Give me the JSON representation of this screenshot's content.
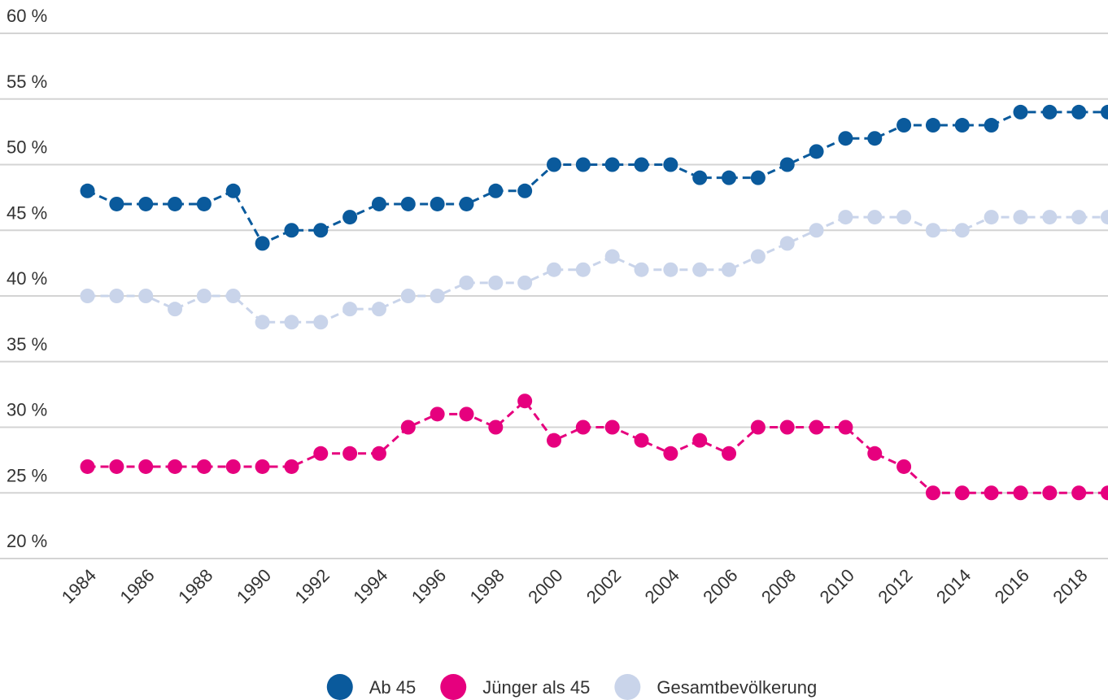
{
  "chart_data": {
    "type": "line",
    "x": [
      1984,
      1985,
      1986,
      1987,
      1988,
      1989,
      1990,
      1991,
      1992,
      1993,
      1994,
      1995,
      1996,
      1997,
      1998,
      1999,
      2000,
      2001,
      2002,
      2003,
      2004,
      2005,
      2006,
      2007,
      2008,
      2009,
      2010,
      2011,
      2012,
      2013,
      2014,
      2015,
      2016,
      2017,
      2018,
      2019
    ],
    "series": [
      {
        "name": "Ab 45",
        "color": "#0a5a9c",
        "values": [
          48,
          47,
          47,
          47,
          47,
          48,
          44,
          45,
          45,
          46,
          47,
          47,
          47,
          47,
          48,
          48,
          50,
          50,
          50,
          50,
          50,
          49,
          49,
          49,
          50,
          51,
          52,
          52,
          53,
          53,
          53,
          53,
          54,
          54,
          54,
          54
        ]
      },
      {
        "name": "Jünger als 45",
        "color": "#e6007e",
        "values": [
          27,
          27,
          27,
          27,
          27,
          27,
          27,
          27,
          28,
          28,
          28,
          30,
          31,
          31,
          30,
          32,
          29,
          30,
          30,
          29,
          28,
          29,
          28,
          30,
          30,
          30,
          30,
          28,
          27,
          25,
          25,
          25,
          25,
          25,
          25,
          25
        ]
      },
      {
        "name": "Gesamtbevölkerung",
        "color": "#c9d4ea",
        "values": [
          40,
          40,
          40,
          39,
          40,
          40,
          38,
          38,
          38,
          39,
          39,
          40,
          40,
          41,
          41,
          41,
          42,
          42,
          43,
          42,
          42,
          42,
          42,
          43,
          44,
          45,
          46,
          46,
          46,
          45,
          45,
          46,
          46,
          46,
          46,
          46
        ]
      }
    ],
    "xlim": [
      1981,
      2019
    ],
    "xticks": [
      1984,
      1986,
      1988,
      1990,
      1992,
      1994,
      1996,
      1998,
      2000,
      2002,
      2004,
      2006,
      2008,
      2010,
      2012,
      2014,
      2016,
      2018
    ],
    "ylim": [
      20,
      60
    ],
    "yticks": [
      {
        "value": 20,
        "label": "20 %"
      },
      {
        "value": 25,
        "label": "25 %"
      },
      {
        "value": 30,
        "label": "30 %"
      },
      {
        "value": 35,
        "label": "35 %"
      },
      {
        "value": 40,
        "label": "40 %"
      },
      {
        "value": 45,
        "label": "45 %"
      },
      {
        "value": 50,
        "label": "50 %"
      },
      {
        "value": 55,
        "label": "55 %"
      },
      {
        "value": 60,
        "label": "60 %"
      }
    ],
    "grid": true,
    "legend": "bottom"
  }
}
